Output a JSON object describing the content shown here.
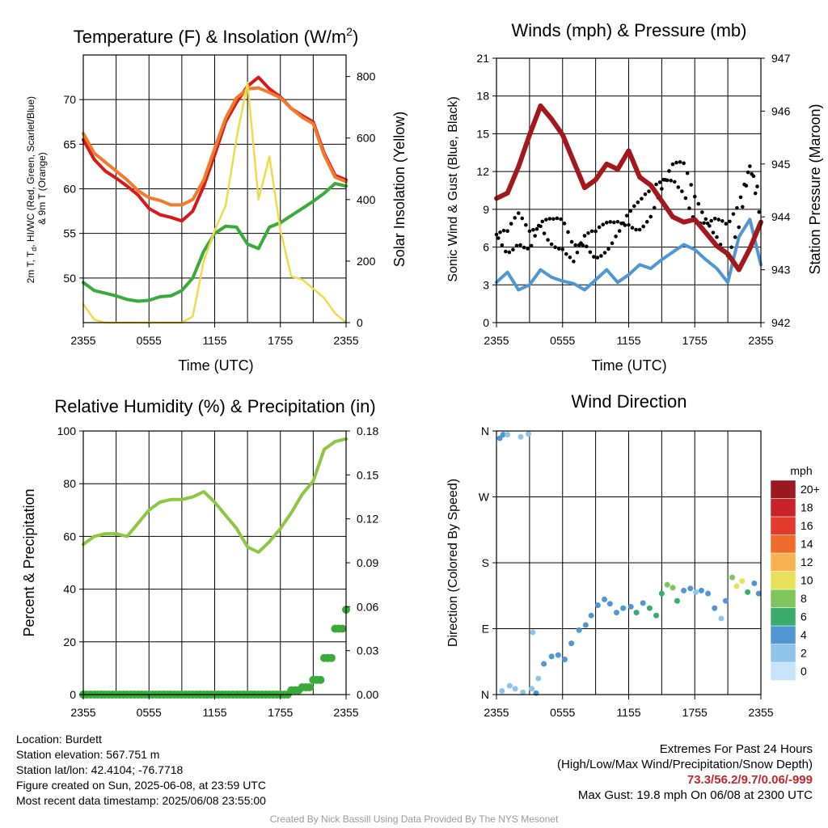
{
  "chart_data": [
    {
      "type": "line",
      "title": "Temperature (F) & Insolation (W/m²)",
      "xlabel": "Time (UTC)",
      "ylabel": "2m T, Td, HI/WC (Red, Green, Scarlet/Blue) & 9m T (Orange)",
      "ylabel_right": "Solar Insolation (Yellow)",
      "x_ticks": [
        "2355",
        "0555",
        "1155",
        "1755",
        "2355"
      ],
      "ylim": [
        45,
        75
      ],
      "y_ticks": [
        50,
        55,
        60,
        65,
        70
      ],
      "ylim_right": [
        0,
        870
      ],
      "y_ticks_right": [
        0,
        200,
        400,
        600,
        800
      ],
      "x": [
        0,
        1,
        2,
        3,
        4,
        5,
        6,
        7,
        8,
        9,
        10,
        11,
        12,
        13,
        14,
        15,
        16,
        17,
        18,
        19,
        20,
        21,
        22,
        23,
        24
      ],
      "series": [
        {
          "name": "2m T",
          "color": "#d7191c",
          "axis": "left",
          "values": [
            65.5,
            63.3,
            62.0,
            61.2,
            60.3,
            59.3,
            57.8,
            57.1,
            56.8,
            56.4,
            57.5,
            60.3,
            63.8,
            67.5,
            69.7,
            71.5,
            72.5,
            71.2,
            70.3,
            69.0,
            68.2,
            67.5,
            64.0,
            61.5,
            61.0
          ]
        },
        {
          "name": "9m T",
          "color": "#f07b2c",
          "axis": "left",
          "values": [
            66.2,
            64.0,
            63.0,
            62.0,
            61.0,
            59.8,
            59.0,
            58.7,
            58.2,
            58.2,
            58.8,
            61.0,
            64.5,
            67.9,
            70.2,
            71.2,
            71.3,
            70.8,
            70.2,
            69.0,
            68.0,
            67.3,
            63.8,
            61.3,
            60.8
          ]
        },
        {
          "name": "2m Td",
          "color": "#3aab3a",
          "axis": "left",
          "values": [
            49.5,
            48.6,
            48.3,
            48.0,
            47.6,
            47.4,
            47.5,
            47.9,
            48.0,
            48.6,
            50.0,
            53.0,
            55.0,
            55.8,
            55.7,
            53.8,
            53.3,
            55.7,
            56.2,
            57.0,
            57.8,
            58.6,
            59.5,
            60.6,
            60.3
          ]
        },
        {
          "name": "Solar Insolation",
          "color": "#f1d94a",
          "axis": "right",
          "values": [
            60,
            10,
            0,
            0,
            0,
            0,
            0,
            0,
            0,
            0,
            20,
            200,
            300,
            380,
            600,
            780,
            400,
            540,
            300,
            150,
            140,
            110,
            80,
            30,
            0
          ]
        }
      ]
    },
    {
      "type": "line",
      "title": "Winds (mph) & Pressure (mb)",
      "xlabel": "Time (UTC)",
      "ylabel": "Sonic Wind & Gust (Blue, Black)",
      "ylabel_right": "Station Pressure (Maroon)",
      "x_ticks": [
        "2355",
        "0555",
        "1155",
        "1755",
        "2355"
      ],
      "ylim": [
        0,
        21
      ],
      "y_ticks": [
        0,
        3,
        6,
        9,
        12,
        15,
        18,
        21
      ],
      "ylim_right": [
        942,
        947
      ],
      "y_ticks_right": [
        942,
        943,
        944,
        945,
        946,
        947
      ],
      "x": [
        0,
        1,
        2,
        3,
        4,
        5,
        6,
        7,
        8,
        9,
        10,
        11,
        12,
        13,
        14,
        15,
        16,
        17,
        18,
        19,
        20,
        21,
        22,
        23,
        24
      ],
      "series": [
        {
          "name": "Sonic Wind",
          "color": "#4f96d2",
          "axis": "left",
          "values": [
            3.2,
            4.0,
            2.6,
            3.0,
            4.2,
            3.6,
            3.3,
            3.1,
            2.6,
            3.4,
            4.2,
            3.2,
            3.8,
            4.6,
            4.3,
            5.0,
            5.6,
            6.2,
            5.8,
            5.0,
            4.3,
            3.2,
            6.8,
            8.2,
            4.6
          ]
        },
        {
          "name": "Gust",
          "color": "#000000",
          "axis": "left",
          "values": [
            7.0,
            6.4,
            7.5,
            6.5,
            7.8,
            7.2,
            7.0,
            5.5,
            6.6,
            6.2,
            6.8,
            7.5,
            8.2,
            8.5,
            9.5,
            11.0,
            12.0,
            11.5,
            9.0,
            8.0,
            7.5,
            6.5,
            8.5,
            12.5,
            9.0
          ]
        },
        {
          "name": "Station Pressure",
          "color": "#a3181d",
          "axis": "right",
          "values": [
            944.35,
            944.45,
            944.95,
            945.55,
            946.1,
            945.85,
            945.55,
            945.05,
            944.55,
            944.7,
            945.0,
            944.9,
            945.25,
            944.75,
            944.6,
            944.3,
            944.0,
            943.9,
            943.95,
            943.7,
            943.45,
            943.3,
            943.0,
            943.4,
            943.9
          ]
        }
      ]
    },
    {
      "type": "line",
      "title": "Relative Humidity (%) & Precipitation (in)",
      "xlabel": "",
      "ylabel": "Percent & Precipitation",
      "x_ticks": [
        "2355",
        "0555",
        "1155",
        "1755",
        "2355"
      ],
      "ylim": [
        0,
        100
      ],
      "y_ticks": [
        0,
        20,
        40,
        60,
        80,
        100
      ],
      "ylim_right": [
        0,
        0.18
      ],
      "y_ticks_right": [
        "0.00",
        "0.03",
        "0.06",
        "0.09",
        "0.12",
        "0.15",
        "0.18"
      ],
      "x": [
        0,
        1,
        2,
        3,
        4,
        5,
        6,
        7,
        8,
        9,
        10,
        11,
        12,
        13,
        14,
        15,
        16,
        17,
        18,
        19,
        20,
        21,
        22,
        23,
        24
      ],
      "series": [
        {
          "name": "Relative Humidity",
          "color": "#8dc641",
          "axis": "left",
          "values": [
            57,
            60,
            61,
            61,
            60,
            65,
            70,
            73,
            74,
            74,
            75,
            77,
            73,
            68,
            63,
            56,
            54,
            58,
            63,
            69,
            76,
            81,
            93,
            96,
            97
          ]
        },
        {
          "name": "Precipitation",
          "color": "#3aab3a",
          "axis": "right",
          "values": [
            0,
            0,
            0,
            0,
            0,
            0,
            0,
            0,
            0,
            0,
            0,
            0,
            0,
            0,
            0,
            0,
            0,
            0,
            0,
            0.003,
            0.005,
            0.01,
            0.025,
            0.045,
            0.058
          ]
        }
      ]
    },
    {
      "type": "scatter",
      "title": "Wind Direction",
      "ylabel": "Direction (Colored By Speed)",
      "x_ticks": [
        "2355",
        "0555",
        "1155",
        "1755",
        "2355"
      ],
      "ylim": [
        0,
        360
      ],
      "y_ticks": [
        "N",
        "E",
        "S",
        "W",
        "N"
      ],
      "legend_title": "mph",
      "legend_labels": [
        "0",
        "2",
        "4",
        "6",
        "8",
        "10",
        "12",
        "14",
        "16",
        "18",
        "20+"
      ],
      "legend_colors": [
        "#c5e4f7",
        "#8ec4ea",
        "#4f96d2",
        "#3aab6a",
        "#7fc45c",
        "#e8e25a",
        "#f8b24f",
        "#f06c2d",
        "#e23b2c",
        "#c8232a",
        "#9b1a1f"
      ],
      "points": [
        {
          "x": 0.3,
          "dir": 350,
          "spd": 3
        },
        {
          "x": 0.6,
          "dir": 355,
          "spd": 4
        },
        {
          "x": 1.0,
          "dir": 355,
          "spd": 2
        },
        {
          "x": 2.2,
          "dir": 352,
          "spd": 1
        },
        {
          "x": 2.9,
          "dir": 356,
          "spd": 2
        },
        {
          "x": 0.5,
          "dir": 5,
          "spd": 2
        },
        {
          "x": 1.2,
          "dir": 12,
          "spd": 2
        },
        {
          "x": 1.7,
          "dir": 8,
          "spd": 1
        },
        {
          "x": 2.4,
          "dir": 3,
          "spd": 2
        },
        {
          "x": 3.2,
          "dir": 8,
          "spd": 1
        },
        {
          "x": 3.6,
          "dir": 2,
          "spd": 3
        },
        {
          "x": 3.3,
          "dir": 85,
          "spd": 1
        },
        {
          "x": 3.8,
          "dir": 22,
          "spd": 2
        },
        {
          "x": 4.3,
          "dir": 42,
          "spd": 3
        },
        {
          "x": 5.0,
          "dir": 52,
          "spd": 3
        },
        {
          "x": 5.6,
          "dir": 54,
          "spd": 4
        },
        {
          "x": 6.2,
          "dir": 48,
          "spd": 4
        },
        {
          "x": 6.8,
          "dir": 70,
          "spd": 3
        },
        {
          "x": 7.5,
          "dir": 88,
          "spd": 4
        },
        {
          "x": 8.1,
          "dir": 95,
          "spd": 3
        },
        {
          "x": 8.6,
          "dir": 108,
          "spd": 3
        },
        {
          "x": 9.2,
          "dir": 122,
          "spd": 4
        },
        {
          "x": 9.8,
          "dir": 130,
          "spd": 3
        },
        {
          "x": 10.3,
          "dir": 124,
          "spd": 4
        },
        {
          "x": 10.9,
          "dir": 112,
          "spd": 4
        },
        {
          "x": 11.5,
          "dir": 118,
          "spd": 3
        },
        {
          "x": 12.2,
          "dir": 120,
          "spd": 4
        },
        {
          "x": 12.7,
          "dir": 112,
          "spd": 5
        },
        {
          "x": 13.3,
          "dir": 125,
          "spd": 4
        },
        {
          "x": 13.9,
          "dir": 118,
          "spd": 6
        },
        {
          "x": 14.5,
          "dir": 108,
          "spd": 5
        },
        {
          "x": 15.0,
          "dir": 138,
          "spd": 6
        },
        {
          "x": 15.5,
          "dir": 150,
          "spd": 7
        },
        {
          "x": 16.0,
          "dir": 146,
          "spd": 8
        },
        {
          "x": 16.4,
          "dir": 128,
          "spd": 5
        },
        {
          "x": 17.0,
          "dir": 142,
          "spd": 4
        },
        {
          "x": 17.6,
          "dir": 145,
          "spd": 3
        },
        {
          "x": 18.1,
          "dir": 140,
          "spd": 2
        },
        {
          "x": 18.6,
          "dir": 142,
          "spd": 4
        },
        {
          "x": 19.2,
          "dir": 138,
          "spd": 3
        },
        {
          "x": 19.8,
          "dir": 118,
          "spd": 3
        },
        {
          "x": 20.4,
          "dir": 104,
          "spd": 2
        },
        {
          "x": 20.8,
          "dir": 128,
          "spd": 3
        },
        {
          "x": 21.4,
          "dir": 160,
          "spd": 8
        },
        {
          "x": 21.8,
          "dir": 148,
          "spd": 10
        },
        {
          "x": 22.3,
          "dir": 155,
          "spd": 9
        },
        {
          "x": 22.8,
          "dir": 140,
          "spd": 6
        },
        {
          "x": 23.4,
          "dir": 152,
          "spd": 4
        },
        {
          "x": 23.8,
          "dir": 138,
          "spd": 3
        }
      ]
    }
  ],
  "info": {
    "location": "Location: Burdett",
    "elevation": "Station elevation: 567.751 m",
    "latlon": "Station lat/lon: 42.4104; -76.7718",
    "created": "Figure created on Sun, 2025-06-08, at 23:59 UTC",
    "recent": "Most recent data timestamp: 2025/06/08 23:55:00"
  },
  "extremes": {
    "title": "Extremes For Past 24 Hours",
    "subtitle": "(High/Low/Max Wind/Precipitation/Snow Depth)",
    "values": "73.3/56.2/9.7/0.06/-999",
    "gust": "Max Gust: 19.8 mph On 06/08 at 2300 UTC"
  },
  "credit": "Created By Nick Bassill Using Data Provided By The NYS Mesonet"
}
